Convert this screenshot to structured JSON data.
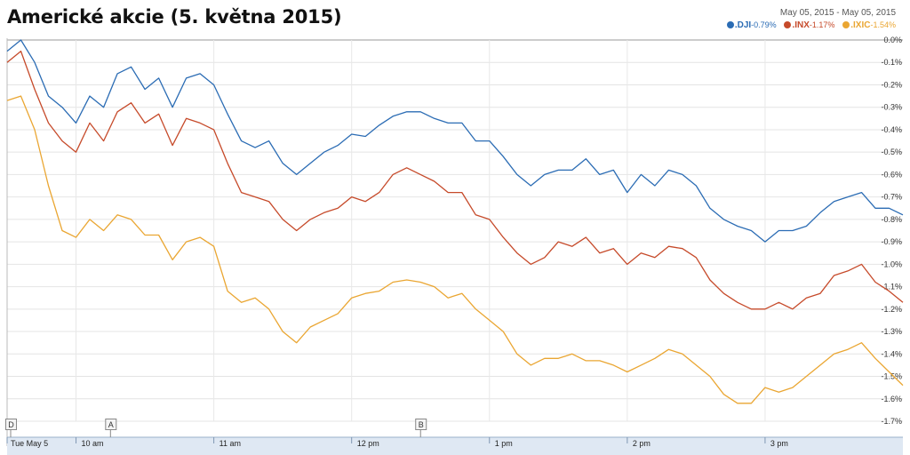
{
  "header": {
    "title": "Americké akcie (5. května 2015)",
    "date_range": "May 05, 2015  -  May 05, 2015"
  },
  "legend": [
    {
      "symbol": ".DJI",
      "change": "-0.79%",
      "color": "#2b6cb4"
    },
    {
      "symbol": ".INX",
      "change": "-1.17%",
      "color": "#c64a2a"
    },
    {
      "symbol": ".IXIC",
      "change": "-1.54%",
      "color": "#eaa632"
    }
  ],
  "markers": [
    {
      "label": "D",
      "time": 9.5
    },
    {
      "label": "A",
      "time": 10.25
    },
    {
      "label": "B",
      "time": 12.5
    }
  ],
  "chart_data": {
    "type": "line",
    "title": "Americké akcie (5. května 2015)",
    "xlabel": "",
    "ylabel": "",
    "x_axis": {
      "start": 9.5,
      "end": 16.0,
      "ticks": [
        {
          "time": 9.5,
          "label": "Tue May 5"
        },
        {
          "time": 10.0,
          "label": "10 am"
        },
        {
          "time": 11.0,
          "label": "11 am"
        },
        {
          "time": 12.0,
          "label": "12 pm"
        },
        {
          "time": 13.0,
          "label": "1 pm"
        },
        {
          "time": 14.0,
          "label": "2 pm"
        },
        {
          "time": 15.0,
          "label": "3 pm"
        }
      ]
    },
    "y_axis": {
      "min": -1.7,
      "max": 0.0,
      "ticks": [
        "0.0%",
        "-0.1%",
        "-0.2%",
        "-0.3%",
        "-0.4%",
        "-0.5%",
        "-0.6%",
        "-0.7%",
        "-0.8%",
        "-0.9%",
        "-1.0%",
        "-1.1%",
        "-1.2%",
        "-1.3%",
        "-1.4%",
        "-1.5%",
        "-1.6%",
        "-1.7%"
      ],
      "side": "right"
    },
    "grid": true,
    "legend_position": "top-right",
    "series": [
      {
        "name": ".DJI",
        "change": "-0.79%",
        "color": "#2b6cb4",
        "points": [
          [
            9.5,
            -0.05
          ],
          [
            9.6,
            0.0
          ],
          [
            9.7,
            -0.1
          ],
          [
            9.8,
            -0.25
          ],
          [
            9.9,
            -0.3
          ],
          [
            10.0,
            -0.37
          ],
          [
            10.1,
            -0.25
          ],
          [
            10.2,
            -0.3
          ],
          [
            10.3,
            -0.15
          ],
          [
            10.4,
            -0.12
          ],
          [
            10.5,
            -0.22
          ],
          [
            10.6,
            -0.17
          ],
          [
            10.7,
            -0.3
          ],
          [
            10.8,
            -0.17
          ],
          [
            10.9,
            -0.15
          ],
          [
            11.0,
            -0.2
          ],
          [
            11.1,
            -0.33
          ],
          [
            11.2,
            -0.45
          ],
          [
            11.3,
            -0.48
          ],
          [
            11.4,
            -0.45
          ],
          [
            11.5,
            -0.55
          ],
          [
            11.6,
            -0.6
          ],
          [
            11.7,
            -0.55
          ],
          [
            11.8,
            -0.5
          ],
          [
            11.9,
            -0.47
          ],
          [
            12.0,
            -0.42
          ],
          [
            12.1,
            -0.43
          ],
          [
            12.2,
            -0.38
          ],
          [
            12.3,
            -0.34
          ],
          [
            12.4,
            -0.32
          ],
          [
            12.5,
            -0.32
          ],
          [
            12.6,
            -0.35
          ],
          [
            12.7,
            -0.37
          ],
          [
            12.8,
            -0.37
          ],
          [
            12.9,
            -0.45
          ],
          [
            13.0,
            -0.45
          ],
          [
            13.1,
            -0.52
          ],
          [
            13.2,
            -0.6
          ],
          [
            13.3,
            -0.65
          ],
          [
            13.4,
            -0.6
          ],
          [
            13.5,
            -0.58
          ],
          [
            13.6,
            -0.58
          ],
          [
            13.7,
            -0.53
          ],
          [
            13.8,
            -0.6
          ],
          [
            13.9,
            -0.58
          ],
          [
            14.0,
            -0.68
          ],
          [
            14.1,
            -0.6
          ],
          [
            14.2,
            -0.65
          ],
          [
            14.3,
            -0.58
          ],
          [
            14.4,
            -0.6
          ],
          [
            14.5,
            -0.65
          ],
          [
            14.6,
            -0.75
          ],
          [
            14.7,
            -0.8
          ],
          [
            14.8,
            -0.83
          ],
          [
            14.9,
            -0.85
          ],
          [
            15.0,
            -0.9
          ],
          [
            15.1,
            -0.85
          ],
          [
            15.2,
            -0.85
          ],
          [
            15.3,
            -0.83
          ],
          [
            15.4,
            -0.77
          ],
          [
            15.5,
            -0.72
          ],
          [
            15.6,
            -0.7
          ],
          [
            15.7,
            -0.68
          ],
          [
            15.8,
            -0.75
          ],
          [
            15.9,
            -0.75
          ],
          [
            16.0,
            -0.78
          ]
        ]
      },
      {
        "name": ".INX",
        "change": "-1.17%",
        "color": "#c64a2a",
        "points": [
          [
            9.5,
            -0.1
          ],
          [
            9.6,
            -0.05
          ],
          [
            9.7,
            -0.22
          ],
          [
            9.8,
            -0.37
          ],
          [
            9.9,
            -0.45
          ],
          [
            10.0,
            -0.5
          ],
          [
            10.1,
            -0.37
          ],
          [
            10.2,
            -0.45
          ],
          [
            10.3,
            -0.32
          ],
          [
            10.4,
            -0.28
          ],
          [
            10.5,
            -0.37
          ],
          [
            10.6,
            -0.33
          ],
          [
            10.7,
            -0.47
          ],
          [
            10.8,
            -0.35
          ],
          [
            10.9,
            -0.37
          ],
          [
            11.0,
            -0.4
          ],
          [
            11.1,
            -0.55
          ],
          [
            11.2,
            -0.68
          ],
          [
            11.3,
            -0.7
          ],
          [
            11.4,
            -0.72
          ],
          [
            11.5,
            -0.8
          ],
          [
            11.6,
            -0.85
          ],
          [
            11.7,
            -0.8
          ],
          [
            11.8,
            -0.77
          ],
          [
            11.9,
            -0.75
          ],
          [
            12.0,
            -0.7
          ],
          [
            12.1,
            -0.72
          ],
          [
            12.2,
            -0.68
          ],
          [
            12.3,
            -0.6
          ],
          [
            12.4,
            -0.57
          ],
          [
            12.5,
            -0.6
          ],
          [
            12.6,
            -0.63
          ],
          [
            12.7,
            -0.68
          ],
          [
            12.8,
            -0.68
          ],
          [
            12.9,
            -0.78
          ],
          [
            13.0,
            -0.8
          ],
          [
            13.1,
            -0.88
          ],
          [
            13.2,
            -0.95
          ],
          [
            13.3,
            -1.0
          ],
          [
            13.4,
            -0.97
          ],
          [
            13.5,
            -0.9
          ],
          [
            13.6,
            -0.92
          ],
          [
            13.7,
            -0.88
          ],
          [
            13.8,
            -0.95
          ],
          [
            13.9,
            -0.93
          ],
          [
            14.0,
            -1.0
          ],
          [
            14.1,
            -0.95
          ],
          [
            14.2,
            -0.97
          ],
          [
            14.3,
            -0.92
          ],
          [
            14.4,
            -0.93
          ],
          [
            14.5,
            -0.97
          ],
          [
            14.6,
            -1.07
          ],
          [
            14.7,
            -1.13
          ],
          [
            14.8,
            -1.17
          ],
          [
            14.9,
            -1.2
          ],
          [
            15.0,
            -1.2
          ],
          [
            15.1,
            -1.17
          ],
          [
            15.2,
            -1.2
          ],
          [
            15.3,
            -1.15
          ],
          [
            15.4,
            -1.13
          ],
          [
            15.5,
            -1.05
          ],
          [
            15.6,
            -1.03
          ],
          [
            15.7,
            -1.0
          ],
          [
            15.8,
            -1.08
          ],
          [
            15.9,
            -1.12
          ],
          [
            16.0,
            -1.17
          ]
        ]
      },
      {
        "name": ".IXIC",
        "change": "-1.54%",
        "color": "#eaa632",
        "points": [
          [
            9.5,
            -0.27
          ],
          [
            9.6,
            -0.25
          ],
          [
            9.7,
            -0.4
          ],
          [
            9.8,
            -0.65
          ],
          [
            9.9,
            -0.85
          ],
          [
            10.0,
            -0.88
          ],
          [
            10.1,
            -0.8
          ],
          [
            10.2,
            -0.85
          ],
          [
            10.3,
            -0.78
          ],
          [
            10.4,
            -0.8
          ],
          [
            10.5,
            -0.87
          ],
          [
            10.6,
            -0.87
          ],
          [
            10.7,
            -0.98
          ],
          [
            10.8,
            -0.9
          ],
          [
            10.9,
            -0.88
          ],
          [
            11.0,
            -0.92
          ],
          [
            11.1,
            -1.12
          ],
          [
            11.2,
            -1.17
          ],
          [
            11.3,
            -1.15
          ],
          [
            11.4,
            -1.2
          ],
          [
            11.5,
            -1.3
          ],
          [
            11.6,
            -1.35
          ],
          [
            11.7,
            -1.28
          ],
          [
            11.8,
            -1.25
          ],
          [
            11.9,
            -1.22
          ],
          [
            12.0,
            -1.15
          ],
          [
            12.1,
            -1.13
          ],
          [
            12.2,
            -1.12
          ],
          [
            12.3,
            -1.08
          ],
          [
            12.4,
            -1.07
          ],
          [
            12.5,
            -1.08
          ],
          [
            12.6,
            -1.1
          ],
          [
            12.7,
            -1.15
          ],
          [
            12.8,
            -1.13
          ],
          [
            12.9,
            -1.2
          ],
          [
            13.0,
            -1.25
          ],
          [
            13.1,
            -1.3
          ],
          [
            13.2,
            -1.4
          ],
          [
            13.3,
            -1.45
          ],
          [
            13.4,
            -1.42
          ],
          [
            13.5,
            -1.42
          ],
          [
            13.6,
            -1.4
          ],
          [
            13.7,
            -1.43
          ],
          [
            13.8,
            -1.43
          ],
          [
            13.9,
            -1.45
          ],
          [
            14.0,
            -1.48
          ],
          [
            14.1,
            -1.45
          ],
          [
            14.2,
            -1.42
          ],
          [
            14.3,
            -1.38
          ],
          [
            14.4,
            -1.4
          ],
          [
            14.5,
            -1.45
          ],
          [
            14.6,
            -1.5
          ],
          [
            14.7,
            -1.58
          ],
          [
            14.8,
            -1.62
          ],
          [
            14.9,
            -1.62
          ],
          [
            15.0,
            -1.55
          ],
          [
            15.1,
            -1.57
          ],
          [
            15.2,
            -1.55
          ],
          [
            15.3,
            -1.5
          ],
          [
            15.4,
            -1.45
          ],
          [
            15.5,
            -1.4
          ],
          [
            15.6,
            -1.38
          ],
          [
            15.7,
            -1.35
          ],
          [
            15.8,
            -1.42
          ],
          [
            15.9,
            -1.48
          ],
          [
            16.0,
            -1.54
          ]
        ]
      }
    ]
  }
}
